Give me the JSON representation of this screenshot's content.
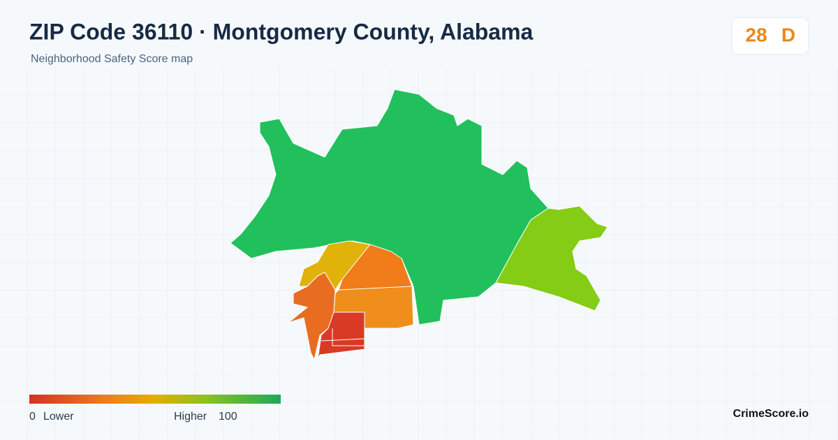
{
  "header": {
    "title": "ZIP Code 36110 · Montgomery County, Alabama",
    "subtitle": "Neighborhood Safety Score map"
  },
  "badge": {
    "score": 28,
    "grade": "D"
  },
  "legend": {
    "min": 0,
    "min_label": "Lower",
    "max_label": "Higher",
    "max": 100
  },
  "footer": {
    "brand": "CrimeScore.io"
  }
}
